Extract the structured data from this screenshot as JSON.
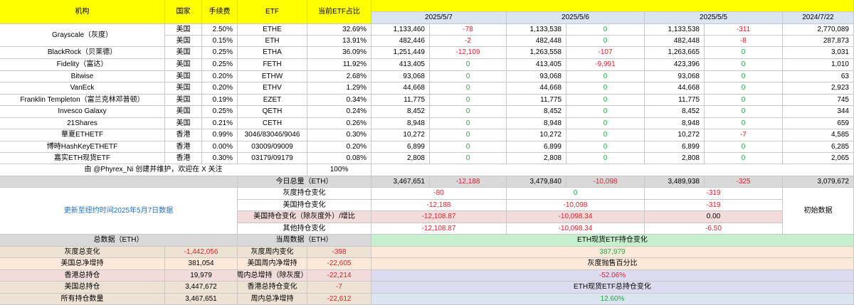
{
  "columns": {
    "institution": "机构",
    "country": "国家",
    "fee": "手续费",
    "etf": "ETF",
    "share": "当前ETF占比",
    "dates": [
      "2025/5/7",
      "2025/5/6",
      "2025/5/5",
      "2024/7/22"
    ]
  },
  "rows": [
    {
      "institution": "Grayscale（灰度）",
      "country": "美国",
      "fee": "2.50%",
      "etf": "ETHE",
      "share": "32.69%",
      "d1": "1,133,460",
      "c1": "-78",
      "d2": "1,133,538",
      "c2": "0",
      "d3": "1,133,538",
      "c3": "-311",
      "d4": "2,770,089"
    },
    {
      "institution": "",
      "country": "美国",
      "fee": "0.15%",
      "etf": "ETH",
      "share": "13.91%",
      "d1": "482,446",
      "c1": "-2",
      "d2": "482,448",
      "c2": "0",
      "d3": "482,448",
      "c3": "-8",
      "d4": "287,873"
    },
    {
      "institution": "BlackRock（贝莱德）",
      "country": "美国",
      "fee": "0.25%",
      "etf": "ETHA",
      "share": "36.09%",
      "d1": "1,251,449",
      "c1": "-12,109",
      "d2": "1,263,558",
      "c2": "-107",
      "d3": "1,263,665",
      "c3": "0",
      "d4": "3,031"
    },
    {
      "institution": "Fidelity（富达）",
      "country": "美国",
      "fee": "0.25%",
      "etf": "FETH",
      "share": "11.92%",
      "d1": "413,405",
      "c1": "0",
      "d2": "413,405",
      "c2": "-9,991",
      "d3": "423,396",
      "c3": "0",
      "d4": "1,010"
    },
    {
      "institution": "Bitwise",
      "country": "美国",
      "fee": "0.20%",
      "etf": "ETHW",
      "share": "2.68%",
      "d1": "93,068",
      "c1": "0",
      "d2": "93,068",
      "c2": "0",
      "d3": "93,068",
      "c3": "0",
      "d4": "63"
    },
    {
      "institution": "VanEck",
      "country": "美国",
      "fee": "0.20%",
      "etf": "ETHV",
      "share": "1.29%",
      "d1": "44,668",
      "c1": "0",
      "d2": "44,668",
      "c2": "0",
      "d3": "44,668",
      "c3": "0",
      "d4": "2,923"
    },
    {
      "institution": "Franklin Templeton（富兰克林邓普顿）",
      "country": "美国",
      "fee": "0.19%",
      "etf": "EZET",
      "share": "0.34%",
      "d1": "11,775",
      "c1": "0",
      "d2": "11,775",
      "c2": "0",
      "d3": "11,775",
      "c3": "0",
      "d4": "745"
    },
    {
      "institution": "Invesco Galaxy",
      "country": "美国",
      "fee": "0.25%",
      "etf": "QETH",
      "share": "0.24%",
      "d1": "8,452",
      "c1": "0",
      "d2": "8,452",
      "c2": "0",
      "d3": "8,452",
      "c3": "0",
      "d4": "344"
    },
    {
      "institution": "21Shares",
      "country": "美国",
      "fee": "0.21%",
      "etf": "CETH",
      "share": "0.26%",
      "d1": "8,948",
      "c1": "0",
      "d2": "8,948",
      "c2": "0",
      "d3": "8,948",
      "c3": "0",
      "d4": "659"
    },
    {
      "institution": "華夏ETHETF",
      "country": "香港",
      "fee": "0.99%",
      "etf": "3046/83046/9046",
      "share": "0.30%",
      "d1": "10,272",
      "c1": "0",
      "d2": "10,272",
      "c2": "0",
      "d3": "10,272",
      "c3": "-7",
      "d4": "4,585"
    },
    {
      "institution": "博時HashKeyETHETF",
      "country": "香港",
      "fee": "0.00%",
      "etf": "03009/09009",
      "share": "0.20%",
      "d1": "6,899",
      "c1": "0",
      "d2": "6,899",
      "c2": "0",
      "d3": "6,899",
      "c3": "0",
      "d4": "6,285"
    },
    {
      "institution": "嘉实ETH现货ETF",
      "country": "香港",
      "fee": "0.30%",
      "etf": "03179/09179",
      "share": "0.08%",
      "d1": "2,808",
      "c1": "0",
      "d2": "2,808",
      "c2": "0",
      "d3": "2,808",
      "c3": "0",
      "d4": "2,065"
    }
  ],
  "credit": "由 @Phyrex_Ni 创建并维护，欢迎在 X 关注",
  "share_total": "100%",
  "summary": {
    "label": "今日总量（ETH）",
    "d1": "3,467,651",
    "c1": "-12,188",
    "d2": "3,479,840",
    "c2": "-10,098",
    "d3": "3,489,938",
    "c3": "-325",
    "d4": "3,079,672"
  },
  "update_note": "更新至纽约时间2025年5月7日数据",
  "initial_data": "初始数据",
  "changes": [
    {
      "label": "灰度持仓变化",
      "v1": "-80",
      "v2": "0",
      "v3": "-319"
    },
    {
      "label": "美国持仓变化",
      "v1": "-12,188",
      "v2": "-10,098",
      "v3": "-319"
    },
    {
      "label": "美国持仓变化（除灰度外）/增比",
      "v1": "-12,108.87",
      "v2": "-10,098.34",
      "v3": "0.00"
    },
    {
      "label": "其他持仓变化",
      "v1": "-12,108.87",
      "v2": "-10,098.34",
      "v3": "-6.50"
    }
  ],
  "bottom": {
    "total_header": "总数据（ETH）",
    "week_header": "当周数据（ETH）",
    "spot_change_header": "ETH现货ETF持仓变化",
    "spot_change_value": "387,979",
    "gray_sell_label": "灰度抛售百分比",
    "gray_sell_value": "-52.06%",
    "spot_total_label": "ETH现货ETF总持仓变化",
    "spot_total_value": "12.60%",
    "totals": [
      {
        "label": "灰度总变化",
        "value": "-1,442,056"
      },
      {
        "label": "美国总净增持",
        "value": "381,054"
      },
      {
        "label": "香港总持仓",
        "value": "19,979"
      },
      {
        "label": "美国总持仓",
        "value": "3,447,672"
      },
      {
        "label": "所有持仓数量",
        "value": "3,467,651"
      }
    ],
    "week": [
      {
        "label": "灰度周内变化",
        "value": "-398"
      },
      {
        "label": "美国周内净增持",
        "value": "-22,605"
      },
      {
        "label": "周内总增持（除灰度）",
        "value": "-22,214"
      },
      {
        "label": "香港总持仓变化",
        "value": "-7"
      },
      {
        "label": "周内总净增持",
        "value": "-22,612"
      }
    ]
  },
  "colors": {
    "header_yellow": "#ffff00",
    "date_blue": "#dbe5f1",
    "summary_gray": "#d9d9d9",
    "pink": "#f2dcdb",
    "peach": "#fde9d9",
    "mint": "#c6efce",
    "lavender": "#dcdcf0",
    "light_blue": "#dbe5f1",
    "tan": "#ede2d3",
    "negative": "#e0202a",
    "positive": "#28a745",
    "link_blue": "#1f6fc0"
  }
}
